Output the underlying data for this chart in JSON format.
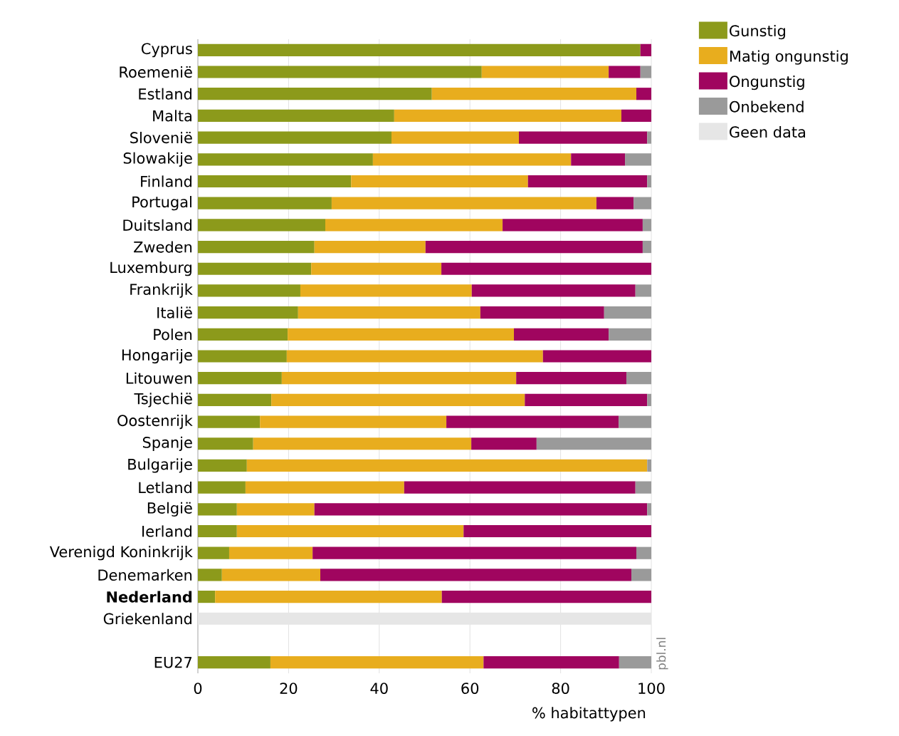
{
  "chart_data": {
    "type": "bar",
    "orientation": "horizontal",
    "stacked": true,
    "categories": [
      "Cyprus",
      "Roemenië",
      "Estland",
      "Malta",
      "Slovenië",
      "Slowakije",
      "Finland",
      "Portugal",
      "Duitsland",
      "Zweden",
      "Luxemburg",
      "Frankrijk",
      "Italië",
      "Polen",
      "Hongarije",
      "Litouwen",
      "Tsjechië",
      "Oostenrijk",
      "Spanje",
      "Bulgarije",
      "Letland",
      "België",
      "Ierland",
      "Verenigd Koninkrijk",
      "Denemarken",
      "**Nederland**",
      "Griekenland",
      null,
      "EU27"
    ],
    "series": [
      {
        "name": "Gunstig",
        "color": "#8c9a1b",
        "values": [
          97.6,
          62.6,
          51.6,
          43.3,
          42.7,
          38.6,
          33.8,
          29.5,
          28.1,
          25.7,
          25,
          22.6,
          22.1,
          19.8,
          19.6,
          18.5,
          16.2,
          13.7,
          12.2,
          10.8,
          10.5,
          8.6,
          8.6,
          6.9,
          5.3,
          3.8,
          null,
          null,
          16
        ]
      },
      {
        "name": "Matig ongunstig",
        "color": "#e8ad1e",
        "values": [
          null,
          28,
          45.1,
          50.1,
          28.1,
          43.7,
          39,
          58.4,
          39.1,
          24.5,
          28.7,
          37.8,
          40.2,
          49.9,
          56.5,
          51.7,
          55.9,
          41.1,
          48.1,
          88.3,
          35,
          17.1,
          50,
          18.4,
          21.7,
          50,
          null,
          null,
          47
        ]
      },
      {
        "name": "Ongunstig",
        "color": "#a0055f",
        "values": [
          2.4,
          7,
          3.3,
          6.6,
          28.3,
          11.9,
          26.3,
          8.2,
          30.9,
          47.9,
          46.3,
          36.1,
          27.3,
          20.9,
          23.9,
          24.3,
          27,
          38,
          14.4,
          null,
          51,
          73.4,
          41.4,
          71.4,
          68.6,
          46.2,
          null,
          null,
          29.9
        ]
      },
      {
        "name": "Onbekend",
        "color": "#9a9a9a",
        "values": [
          null,
          2.4,
          null,
          null,
          0.9,
          5.8,
          0.9,
          3.9,
          1.9,
          1.9,
          null,
          3.5,
          10.4,
          9.4,
          null,
          5.5,
          0.9,
          7.2,
          25.3,
          0.9,
          3.5,
          0.9,
          null,
          3.3,
          4.4,
          null,
          null,
          null,
          7.1
        ]
      },
      {
        "name": "Geen data",
        "color": "#e6e6e6",
        "values": [
          null,
          null,
          null,
          null,
          null,
          null,
          null,
          null,
          null,
          null,
          null,
          null,
          null,
          null,
          null,
          null,
          null,
          null,
          null,
          null,
          null,
          null,
          null,
          null,
          null,
          null,
          100,
          null,
          null
        ]
      }
    ],
    "xlim": [
      0,
      100
    ],
    "xticks": [
      0,
      20,
      40,
      60,
      80,
      100
    ],
    "xlabel": "% habitattypen",
    "grid": "x",
    "legend": "top right",
    "annotations": [
      "pbl.nl"
    ]
  }
}
